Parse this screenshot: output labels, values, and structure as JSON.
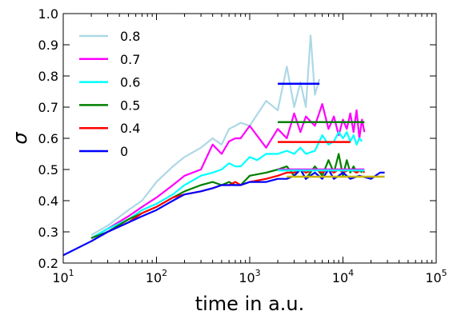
{
  "chart_data": {
    "type": "line",
    "xlabel": "time in a.u.",
    "ylabel": "σ",
    "xscale": "log",
    "xlim": [
      10,
      100000
    ],
    "ylim": [
      0.2,
      1.0
    ],
    "xticks": [
      {
        "value": 10,
        "base": "10",
        "exp": "1"
      },
      {
        "value": 100,
        "base": "10",
        "exp": "2"
      },
      {
        "value": 1000,
        "base": "10",
        "exp": "3"
      },
      {
        "value": 10000,
        "base": "10",
        "exp": "4"
      },
      {
        "value": 100000,
        "base": "10",
        "exp": "5"
      }
    ],
    "yticks": [
      {
        "value": 0.2,
        "label": "0.2"
      },
      {
        "value": 0.3,
        "label": "0.3"
      },
      {
        "value": 0.4,
        "label": "0.4"
      },
      {
        "value": 0.5,
        "label": "0.5"
      },
      {
        "value": 0.6,
        "label": "0.6"
      },
      {
        "value": 0.7,
        "label": "0.7"
      },
      {
        "value": 0.8,
        "label": "0.8"
      },
      {
        "value": 0.9,
        "label": "0.9"
      },
      {
        "value": 1.0,
        "label": "1.0"
      }
    ],
    "legend_position": "upper-left",
    "series": [
      {
        "name": "0.8",
        "color": "#add8e6",
        "x": [
          20,
          30,
          50,
          70,
          100,
          150,
          200,
          300,
          400,
          500,
          600,
          700,
          800,
          1000,
          1500,
          2000,
          2500,
          3000,
          3500,
          4000,
          4500,
          5000,
          5600
        ],
        "y": [
          0.29,
          0.32,
          0.37,
          0.4,
          0.46,
          0.51,
          0.54,
          0.57,
          0.6,
          0.58,
          0.63,
          0.64,
          0.65,
          0.64,
          0.72,
          0.69,
          0.83,
          0.7,
          0.78,
          0.7,
          0.93,
          0.74,
          0.79
        ]
      },
      {
        "name": "0.7",
        "color": "#ff00ff",
        "x": [
          20,
          30,
          50,
          70,
          100,
          150,
          200,
          300,
          400,
          500,
          600,
          700,
          800,
          1000,
          1500,
          2000,
          2500,
          3000,
          3500,
          4000,
          5000,
          6000,
          7000,
          8000,
          9000,
          10000,
          11000,
          12000,
          13000,
          14000,
          15000,
          16000,
          17000
        ],
        "y": [
          0.28,
          0.31,
          0.35,
          0.38,
          0.41,
          0.45,
          0.48,
          0.5,
          0.58,
          0.55,
          0.59,
          0.6,
          0.6,
          0.64,
          0.57,
          0.63,
          0.6,
          0.68,
          0.62,
          0.67,
          0.64,
          0.71,
          0.63,
          0.67,
          0.61,
          0.66,
          0.63,
          0.68,
          0.62,
          0.69,
          0.6,
          0.66,
          0.62
        ]
      },
      {
        "name": "0.6",
        "color": "#00ffff",
        "x": [
          20,
          30,
          50,
          70,
          100,
          150,
          200,
          300,
          400,
          500,
          600,
          700,
          800,
          1000,
          1200,
          1500,
          2000,
          2500,
          3000,
          3500,
          4000,
          5000,
          6000,
          7000,
          8000,
          9000,
          10000,
          11000,
          12000,
          13000,
          14000,
          15000,
          16000
        ],
        "y": [
          0.28,
          0.31,
          0.34,
          0.37,
          0.39,
          0.42,
          0.45,
          0.48,
          0.49,
          0.5,
          0.52,
          0.51,
          0.51,
          0.54,
          0.53,
          0.55,
          0.55,
          0.56,
          0.55,
          0.57,
          0.55,
          0.56,
          0.61,
          0.58,
          0.59,
          0.62,
          0.6,
          0.62,
          0.59,
          0.61,
          0.58,
          0.6,
          0.59
        ]
      },
      {
        "name": "0.5",
        "color": "#008000",
        "x": [
          20,
          30,
          50,
          70,
          100,
          150,
          200,
          300,
          400,
          500,
          600,
          700,
          800,
          1000,
          1500,
          2000,
          2500,
          3000,
          3500,
          4000,
          5000,
          6000,
          7000,
          8000,
          9000,
          10000,
          11000,
          12000,
          13000,
          14000,
          15000,
          16000
        ],
        "y": [
          0.28,
          0.3,
          0.34,
          0.36,
          0.38,
          0.41,
          0.43,
          0.45,
          0.46,
          0.45,
          0.46,
          0.45,
          0.45,
          0.48,
          0.49,
          0.5,
          0.51,
          0.48,
          0.5,
          0.47,
          0.51,
          0.48,
          0.53,
          0.49,
          0.55,
          0.48,
          0.53,
          0.49,
          0.51,
          0.49,
          0.5,
          0.49
        ]
      },
      {
        "name": "0.4",
        "color": "#ff0000",
        "x": [
          20,
          30,
          50,
          70,
          100,
          150,
          200,
          300,
          400,
          500,
          600,
          700,
          800,
          1000,
          1500,
          2000,
          2500,
          3000,
          3500,
          4000,
          5000,
          6000,
          7000,
          8000,
          9000,
          10000,
          12000,
          14000,
          16000,
          17000
        ],
        "y": [
          0.27,
          0.3,
          0.33,
          0.36,
          0.38,
          0.41,
          0.42,
          0.43,
          0.44,
          0.45,
          0.45,
          0.46,
          0.45,
          0.46,
          0.47,
          0.48,
          0.49,
          0.49,
          0.5,
          0.49,
          0.5,
          0.49,
          0.5,
          0.49,
          0.5,
          0.49,
          0.5,
          0.49,
          0.5,
          0.49
        ]
      },
      {
        "name": "0",
        "color": "#0000ff",
        "x": [
          10,
          20,
          30,
          50,
          70,
          100,
          150,
          200,
          300,
          400,
          500,
          600,
          700,
          800,
          1000,
          1500,
          2000,
          2500,
          3000,
          3500,
          4000,
          5000,
          6000,
          7000,
          8000,
          9000,
          10000,
          12000,
          15000,
          20000,
          25000,
          28000
        ],
        "y": [
          0.225,
          0.27,
          0.3,
          0.33,
          0.35,
          0.37,
          0.4,
          0.42,
          0.43,
          0.44,
          0.45,
          0.45,
          0.45,
          0.45,
          0.46,
          0.46,
          0.47,
          0.47,
          0.48,
          0.5,
          0.47,
          0.49,
          0.47,
          0.5,
          0.47,
          0.48,
          0.49,
          0.47,
          0.48,
          0.47,
          0.49,
          0.49
        ]
      }
    ],
    "reference_lines": [
      {
        "color": "#0000ff",
        "y": 0.775,
        "x_start": 2000,
        "x_end": 5600
      },
      {
        "color": "#008000",
        "y": 0.652,
        "x_start": 2000,
        "x_end": 17000
      },
      {
        "color": "#ff0000",
        "y": 0.588,
        "x_start": 2000,
        "x_end": 12000
      },
      {
        "color": "#ff00ff",
        "y": 0.5,
        "x_start": 2000,
        "x_end": 17000
      },
      {
        "color": "#00ffff",
        "y": 0.497,
        "x_start": 2000,
        "x_end": 17000
      },
      {
        "color": "#c8b400",
        "y": 0.477,
        "x_start": 2500,
        "x_end": 28000
      }
    ]
  }
}
